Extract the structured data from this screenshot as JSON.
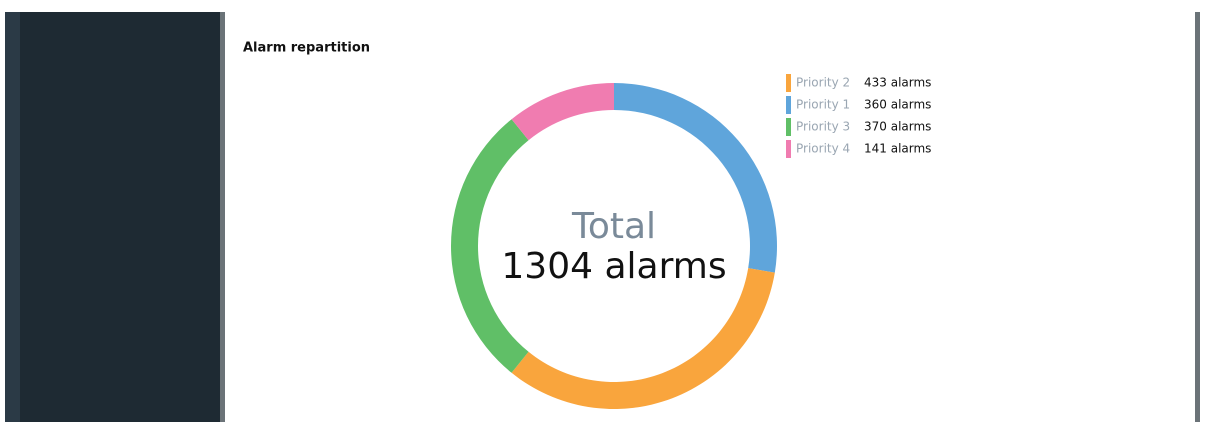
{
  "chart_data": {
    "type": "donut",
    "title": "Alarm repartition",
    "categories": [
      "Priority 1",
      "Priority 2",
      "Priority 3",
      "Priority 4"
    ],
    "values": [
      360,
      433,
      370,
      141
    ],
    "value_labels": [
      "360 alarms",
      "433 alarms",
      "370 alarms",
      "141 alarms"
    ],
    "colors": [
      "#5fa5db",
      "#f9a53d",
      "#60bf67",
      "#f07cb0"
    ],
    "center_title": "Total",
    "center_text": "1304 alarms"
  }
}
